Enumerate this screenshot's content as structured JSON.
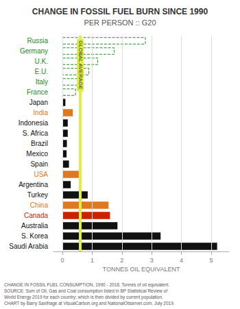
{
  "chart_data": {
    "type": "bar",
    "orientation": "horizontal",
    "title": "CHANGE IN FOSSIL FUEL BURN SINCE 1990",
    "subtitle": "PER PERSON :: G20",
    "xlabel": "TONNES OIL EQUIVALENT",
    "categories": [
      "Russia",
      "Germany",
      "U.K.",
      "E.U.",
      "Italy",
      "France",
      "Japan",
      "India",
      "Indonesia",
      "S. Africa",
      "Brazil",
      "Mexico",
      "Spain",
      "USA",
      "Argentina",
      "Turkey",
      "China",
      "Canada",
      "Australia",
      "S. Korea",
      "Saudi Arabia"
    ],
    "series": [
      {
        "color": "#228B22",
        "line_style": "dashed",
        "values": [
          2.8,
          1.75,
          1.2,
          0.9,
          0.65,
          0.45,
          null,
          null,
          null,
          null,
          null,
          null,
          null,
          null,
          null,
          null,
          null,
          null,
          null,
          null,
          null
        ]
      },
      {
        "colors": [
          null,
          null,
          null,
          null,
          null,
          null,
          "#111111",
          "#E07820",
          "#111111",
          "#111111",
          "#111111",
          "#111111",
          "#111111",
          "#E07820",
          "#111111",
          "#111111",
          "#E07820",
          "#cc2200",
          "#111111",
          "#111111",
          "#111111"
        ],
        "values": [
          null,
          null,
          null,
          null,
          null,
          null,
          0.1,
          0.35,
          0.18,
          0.18,
          0.15,
          0.14,
          0.22,
          0.55,
          0.28,
          0.85,
          1.55,
          1.6,
          1.85,
          3.3,
          5.2
        ]
      }
    ],
    "xlim": [
      -0.3,
      5.6
    ],
    "xticks": [
      0,
      1,
      2,
      3,
      4,
      5
    ],
    "grid": true,
    "annotations": [
      {
        "text": "GLOBAL AVERAGE",
        "x": 0.6,
        "color": "#ddee44"
      },
      {
        "text": "CHANGE IN FOSSIL FUEL CONSUMPTION, 1990 - 2018. Tonnes of oil equivalent.\nSOURCE: Sum of Oil, Gas and Coal consumption listed in BP Statistical Review of\nWorld Energy 2019 for each country; which is then divided by current population.\nCHART by Barry Saxifrage at VisualCarbon.org and NationalObserver.com. July 2019."
      }
    ]
  }
}
